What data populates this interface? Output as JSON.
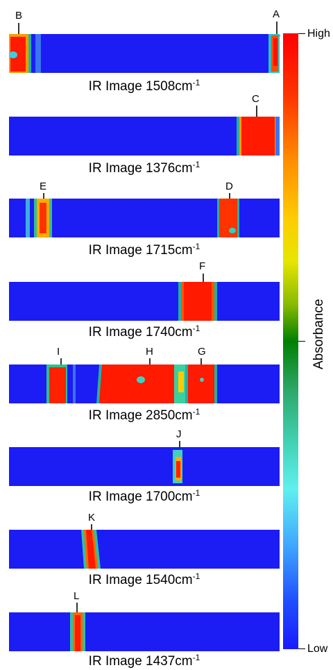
{
  "colorbar": {
    "title": "Absorbance",
    "high_label": "High",
    "low_label": "Low",
    "colors": [
      "#ff0000",
      "#ffcc00",
      "#008000",
      "#5ff0f0",
      "#1a1aff"
    ]
  },
  "panels": [
    {
      "caption": "IR Image 1508cm",
      "superscript": "-1",
      "markers": [
        "B",
        "A"
      ]
    },
    {
      "caption": "IR Image 1376cm",
      "superscript": "-1",
      "markers": [
        "C"
      ]
    },
    {
      "caption": "IR Image 1715cm",
      "superscript": "-1",
      "markers": [
        "E",
        "D"
      ]
    },
    {
      "caption": "IR Image 1740cm",
      "superscript": "-1",
      "markers": [
        "F"
      ]
    },
    {
      "caption": "IR Image 2850cm",
      "superscript": "-1",
      "markers": [
        "I",
        "H",
        "G"
      ]
    },
    {
      "caption": "IR Image 1700cm",
      "superscript": "-1",
      "markers": [
        "J"
      ]
    },
    {
      "caption": "IR Image 1540cm",
      "superscript": "-1",
      "markers": [
        "K"
      ]
    },
    {
      "caption": "IR Image 1437cm",
      "superscript": "-1",
      "markers": [
        "L"
      ]
    }
  ]
}
